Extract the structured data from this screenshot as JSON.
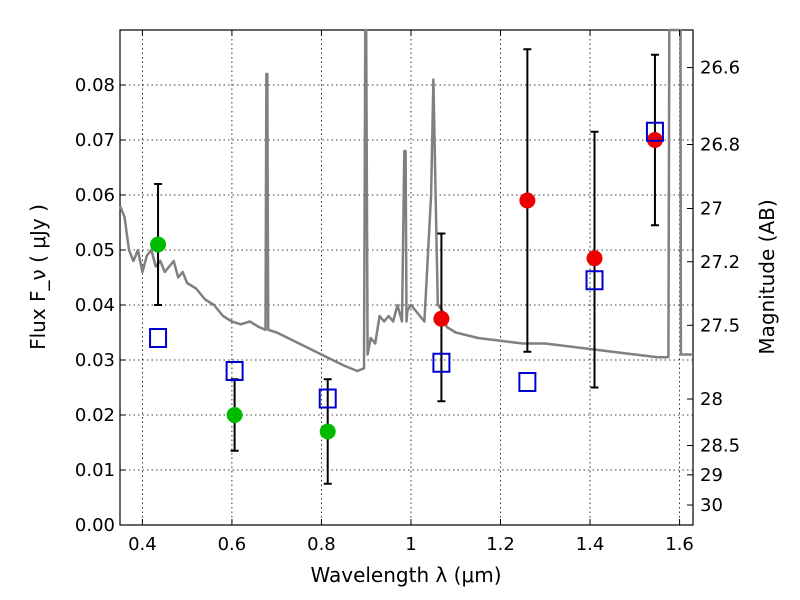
{
  "chart_data": {
    "type": "scatter",
    "title": "",
    "xlabel": "Wavelength λ (μm)",
    "ylabel": "Flux F_ν ( μJy )",
    "y2label": "Magnitude (AB)",
    "xlim": [
      0.35,
      1.63
    ],
    "ylim": [
      0.0,
      0.09
    ],
    "grid": true,
    "x_ticks": [
      0.4,
      0.6,
      0.8,
      1.0,
      1.2,
      1.4,
      1.6
    ],
    "x_tick_labels": [
      "0.4",
      "0.6",
      "0.8",
      "1",
      "1.2",
      "1.4",
      "1.6"
    ],
    "y_ticks": [
      0.0,
      0.01,
      0.02,
      0.03,
      0.04,
      0.05,
      0.06,
      0.07,
      0.08
    ],
    "y_tick_labels": [
      "0.00",
      "0.01",
      "0.02",
      "0.03",
      "0.04",
      "0.05",
      "0.06",
      "0.07",
      "0.08"
    ],
    "mag_ticks": [
      26.6,
      26.8,
      27,
      27.2,
      27.5,
      28,
      28.5,
      29,
      30
    ],
    "mag_tick_labels": [
      "26.6",
      "26.8",
      "27",
      "27.2",
      "27.5",
      "28",
      "28.5",
      "29",
      "30"
    ],
    "series": [
      {
        "marker": "circle",
        "color": "#00bb00",
        "points": [
          {
            "x": 0.435,
            "y": 0.051,
            "err": [
              0.04,
              0.062
            ]
          },
          {
            "x": 0.606,
            "y": 0.02,
            "err": [
              0.0135,
              0.0265
            ]
          },
          {
            "x": 0.814,
            "y": 0.017,
            "err": [
              0.0075,
              0.0265
            ]
          }
        ]
      },
      {
        "marker": "circle",
        "color": "#ee0000",
        "points": [
          {
            "x": 1.068,
            "y": 0.0375,
            "err": [
              0.0225,
              0.053
            ]
          },
          {
            "x": 1.26,
            "y": 0.059,
            "err": [
              0.0315,
              0.0865
            ]
          },
          {
            "x": 1.41,
            "y": 0.0485,
            "err": [
              0.025,
              0.0715
            ]
          },
          {
            "x": 1.545,
            "y": 0.07,
            "err": [
              0.0545,
              0.0855
            ]
          }
        ]
      },
      {
        "marker": "open-square",
        "color": "#0000cc",
        "points": [
          {
            "x": 0.435,
            "y": 0.034
          },
          {
            "x": 0.606,
            "y": 0.028
          },
          {
            "x": 0.814,
            "y": 0.023
          },
          {
            "x": 1.068,
            "y": 0.0295
          },
          {
            "x": 1.26,
            "y": 0.026
          },
          {
            "x": 1.41,
            "y": 0.0445
          },
          {
            "x": 1.545,
            "y": 0.0715
          }
        ]
      },
      {
        "marker": "line",
        "color": "#808080",
        "x": [
          0.35,
          0.36,
          0.37,
          0.38,
          0.39,
          0.4,
          0.41,
          0.42,
          0.43,
          0.44,
          0.45,
          0.46,
          0.47,
          0.48,
          0.49,
          0.5,
          0.52,
          0.54,
          0.56,
          0.58,
          0.6,
          0.62,
          0.64,
          0.66,
          0.675,
          0.677,
          0.679,
          0.681,
          0.7,
          0.75,
          0.8,
          0.85,
          0.88,
          0.895,
          0.898,
          0.9,
          0.903,
          0.91,
          0.92,
          0.93,
          0.94,
          0.95,
          0.96,
          0.97,
          0.98,
          0.985,
          0.988,
          0.99,
          0.992,
          1.0,
          1.03,
          1.045,
          1.05,
          1.055,
          1.06,
          1.07,
          1.08,
          1.1,
          1.15,
          1.2,
          1.25,
          1.3,
          1.4,
          1.45,
          1.5,
          1.55,
          1.575,
          1.577,
          1.59,
          1.6,
          1.602,
          1.603,
          1.63
        ],
        "y": [
          0.058,
          0.056,
          0.05,
          0.048,
          0.05,
          0.046,
          0.049,
          0.05,
          0.047,
          0.048,
          0.046,
          0.047,
          0.048,
          0.045,
          0.046,
          0.044,
          0.043,
          0.041,
          0.04,
          0.038,
          0.037,
          0.0365,
          0.037,
          0.036,
          0.0355,
          0.082,
          0.082,
          0.0355,
          0.035,
          0.033,
          0.031,
          0.029,
          0.028,
          0.0285,
          0.095,
          0.095,
          0.031,
          0.034,
          0.033,
          0.038,
          0.037,
          0.038,
          0.037,
          0.04,
          0.037,
          0.068,
          0.068,
          0.037,
          0.039,
          0.04,
          0.037,
          0.06,
          0.081,
          0.06,
          0.04,
          0.039,
          0.036,
          0.035,
          0.034,
          0.0335,
          0.033,
          0.033,
          0.032,
          0.0315,
          0.031,
          0.0305,
          0.0305,
          0.095,
          0.095,
          0.095,
          0.095,
          0.031,
          0.031
        ]
      }
    ]
  }
}
